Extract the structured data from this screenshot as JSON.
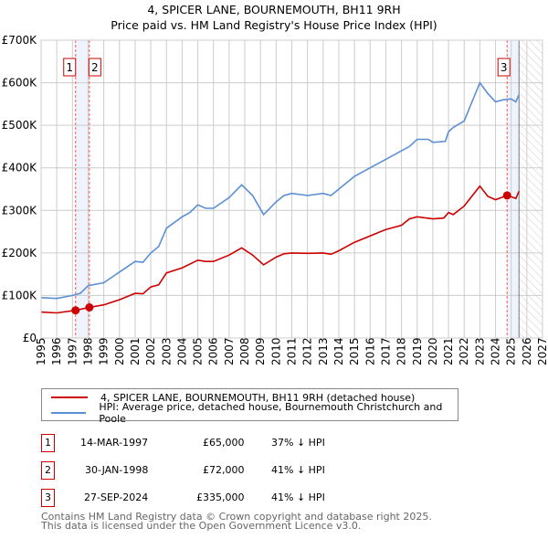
{
  "title": "4, SPICER LANE, BOURNEMOUTH, BH11 9RH",
  "subtitle": "Price paid vs. HM Land Registry's House Price Index (HPI)",
  "chart_data": {
    "type": "line",
    "xlim": [
      1995,
      2027
    ],
    "ylim": [
      0,
      700000
    ],
    "x_ticks": [
      "1995",
      "1996",
      "1997",
      "1998",
      "1999",
      "2000",
      "2001",
      "2002",
      "2003",
      "2004",
      "2005",
      "2006",
      "2007",
      "2008",
      "2009",
      "2010",
      "2011",
      "2012",
      "2013",
      "2014",
      "2015",
      "2016",
      "2017",
      "2018",
      "2019",
      "2020",
      "2021",
      "2022",
      "2023",
      "2024",
      "2025",
      "2026",
      "2027"
    ],
    "y_ticks": [
      {
        "v": 0,
        "label": "£0"
      },
      {
        "v": 100000,
        "label": "£100K"
      },
      {
        "v": 200000,
        "label": "£200K"
      },
      {
        "v": 300000,
        "label": "£300K"
      },
      {
        "v": 400000,
        "label": "£400K"
      },
      {
        "v": 500000,
        "label": "£500K"
      },
      {
        "v": 600000,
        "label": "£600K"
      },
      {
        "v": 700000,
        "label": "£700K"
      }
    ],
    "grid": true,
    "forecast_start": 2025.5,
    "series": [
      {
        "name": "4, SPICER LANE, BOURNEMOUTH, BH11 9RH (detached house)",
        "color": "#cc0000",
        "x": [
          1995,
          1996,
          1997.2,
          1998.08,
          1999,
          2000,
          2001,
          2001.5,
          2002,
          2002.5,
          2003,
          2004,
          2005,
          2005.5,
          2006,
          2007,
          2007.8,
          2008.5,
          2009.2,
          2010,
          2010.5,
          2011,
          2012,
          2013,
          2013.5,
          2014,
          2015,
          2016,
          2017,
          2018,
          2018.5,
          2019,
          2020,
          2020.7,
          2021,
          2021.3,
          2022,
          2023,
          2023.5,
          2024,
          2024.74,
          2025,
          2025.3,
          2025.5
        ],
        "y": [
          61000,
          59000,
          65000,
          72000,
          78000,
          90000,
          105000,
          104000,
          120000,
          125000,
          153000,
          165000,
          183000,
          180000,
          180000,
          195000,
          212000,
          195000,
          172000,
          190000,
          198000,
          200000,
          199000,
          200000,
          197000,
          205000,
          225000,
          240000,
          255000,
          265000,
          280000,
          285000,
          280000,
          282000,
          295000,
          290000,
          310000,
          357000,
          333000,
          325000,
          335000,
          332000,
          328000,
          345000
        ]
      },
      {
        "name": "HPI: Average price, detached house, Bournemouth Christchurch and Poole",
        "color": "#5b8fd4",
        "x": [
          1995,
          1996,
          1997,
          1997.5,
          1998,
          1999,
          2000,
          2001,
          2001.5,
          2002,
          2002.5,
          2003,
          2004,
          2004.5,
          2005,
          2005.5,
          2006,
          2007,
          2007.8,
          2008.5,
          2009.2,
          2010,
          2010.5,
          2011,
          2012,
          2013,
          2013.5,
          2014,
          2015,
          2016,
          2017,
          2018,
          2018.5,
          2019,
          2019.7,
          2020,
          2020.8,
          2021,
          2021.3,
          2022,
          2022.5,
          2023,
          2023.5,
          2024,
          2024.5,
          2025,
          2025.3,
          2025.5
        ],
        "y": [
          95000,
          93000,
          100000,
          105000,
          123000,
          130000,
          155000,
          180000,
          178000,
          200000,
          215000,
          258000,
          285000,
          295000,
          313000,
          305000,
          305000,
          330000,
          360000,
          335000,
          290000,
          320000,
          335000,
          340000,
          335000,
          340000,
          335000,
          350000,
          380000,
          400000,
          420000,
          440000,
          450000,
          467000,
          467000,
          460000,
          462000,
          485000,
          495000,
          510000,
          555000,
          600000,
          575000,
          555000,
          560000,
          562000,
          555000,
          572000
        ]
      }
    ],
    "sales": [
      {
        "id": "1",
        "x": 1997.2,
        "price": 65000
      },
      {
        "id": "2",
        "x": 1998.08,
        "price": 72000
      },
      {
        "id": "3",
        "x": 2024.74,
        "price": 335000
      }
    ]
  },
  "legend": {
    "property": "4, SPICER LANE, BOURNEMOUTH, BH11 9RH (detached house)",
    "hpi": "HPI: Average price, detached house, Bournemouth Christchurch and Poole"
  },
  "transactions": [
    {
      "id": "1",
      "date": "14-MAR-1997",
      "price": "£65,000",
      "delta": "37% ↓ HPI"
    },
    {
      "id": "2",
      "date": "30-JAN-1998",
      "price": "£72,000",
      "delta": "41% ↓ HPI"
    },
    {
      "id": "3",
      "date": "27-SEP-2024",
      "price": "£335,000",
      "delta": "41% ↓ HPI"
    }
  ],
  "footer": {
    "line1": "Contains HM Land Registry data © Crown copyright and database right 2025.",
    "line2": "This data is licensed under the Open Government Licence v3.0."
  }
}
